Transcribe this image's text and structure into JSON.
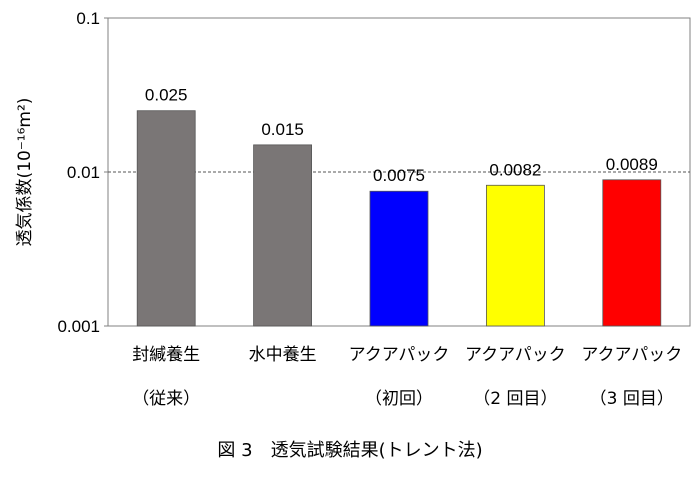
{
  "chart_data": {
    "type": "bar",
    "yscale": "log",
    "ylim": [
      0.001,
      0.1
    ],
    "yticks": [
      "0.001",
      "0.01",
      "0.1"
    ],
    "ylabel": "透気係数(10⁻¹⁶m²)",
    "gridline": "0.01 dashed",
    "categories": [
      {
        "line1": "封緘養生",
        "line2": "（従来）"
      },
      {
        "line1": "水中養生",
        "line2": ""
      },
      {
        "line1": "アクアパック",
        "line2": "（初回）"
      },
      {
        "line1": "アクアパック",
        "line2": "（2 回目）"
      },
      {
        "line1": "アクアパック",
        "line2": "（3 回目）"
      }
    ],
    "values": [
      0.025,
      0.015,
      0.0075,
      0.0082,
      0.0089
    ],
    "labels": [
      "0.025",
      "0.015",
      "0.0075",
      "0.0082",
      "0.0089"
    ],
    "colors": [
      "#7a7676",
      "#7a7676",
      "#0000ff",
      "#ffff00",
      "#ff0000"
    ]
  },
  "caption": "図 3　透気試験結果(トレント法)"
}
